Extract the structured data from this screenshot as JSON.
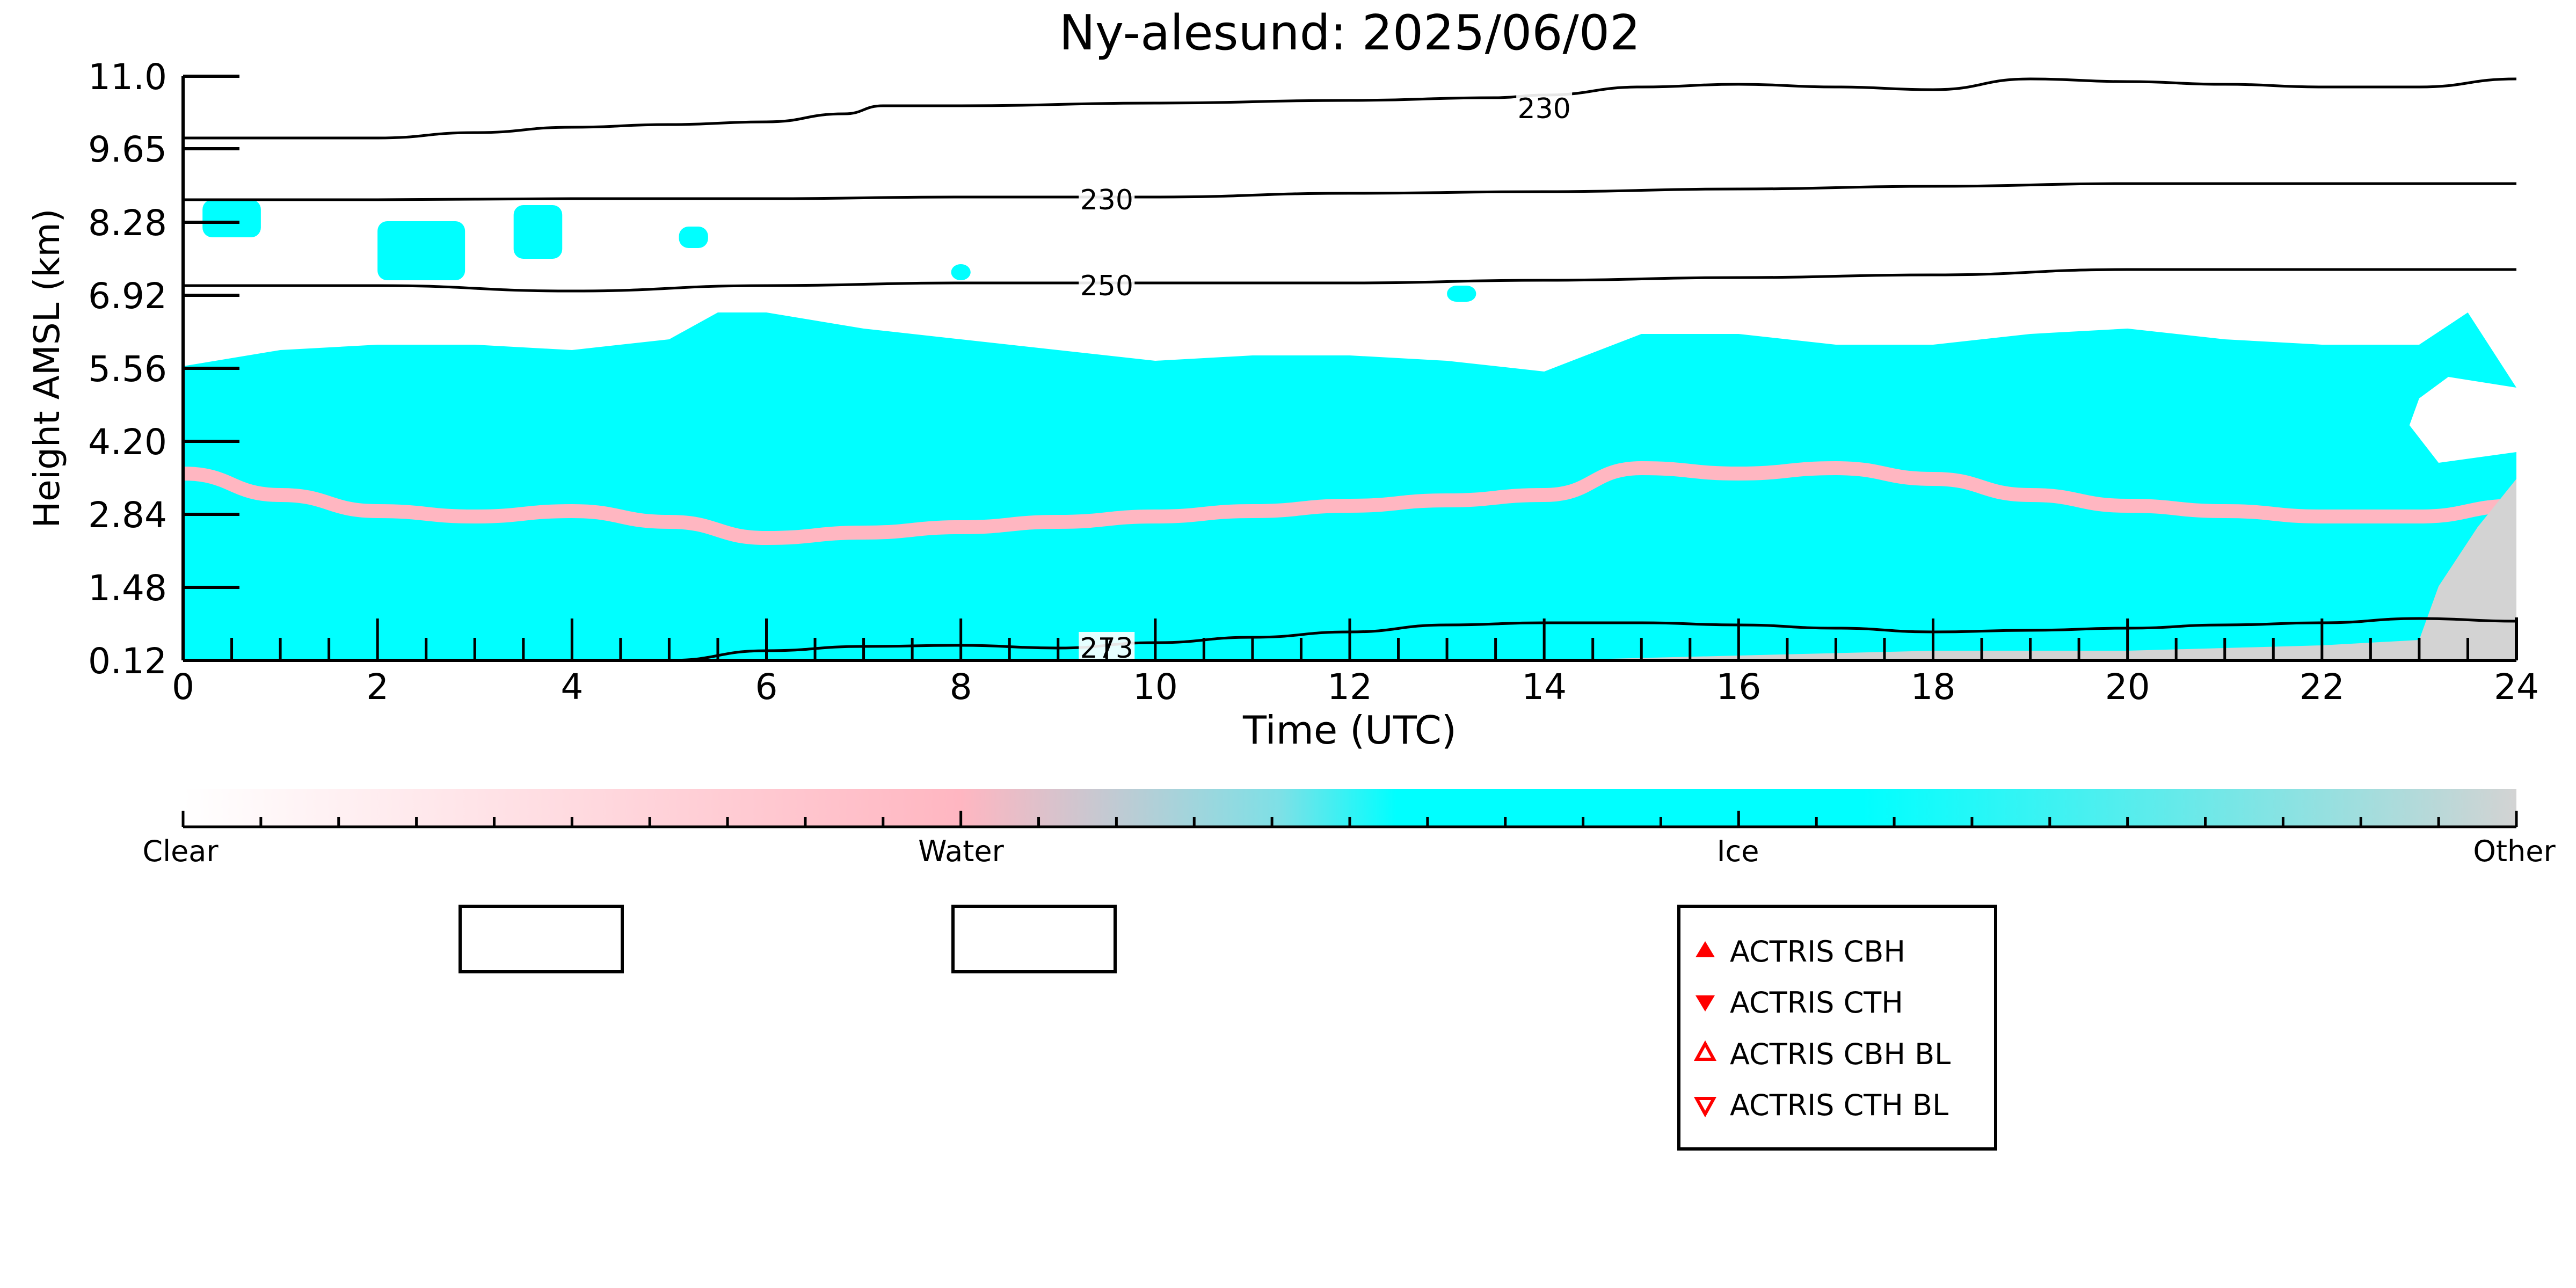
{
  "chart_data": {
    "type": "heatmap",
    "title": "Ny-alesund: 2025/06/02",
    "xlabel": "Time (UTC)",
    "ylabel": "Height AMSL (km)",
    "xlim": [
      0,
      24
    ],
    "ylim": [
      0.12,
      11.0
    ],
    "x_ticks": [
      "0",
      "2",
      "4",
      "6",
      "8",
      "10",
      "12",
      "14",
      "16",
      "18",
      "20",
      "22",
      "24"
    ],
    "y_ticks": [
      "0.12",
      "1.48",
      "2.84",
      "4.20",
      "5.56",
      "6.92",
      "8.28",
      "9.65",
      "11.0"
    ],
    "y_tick_values": [
      0.12,
      1.48,
      2.84,
      4.2,
      5.56,
      6.92,
      8.28,
      9.65,
      11.0
    ],
    "colorbar": {
      "labels": [
        "Clear",
        "Water",
        "Ice",
        "Other"
      ],
      "colors": {
        "clear": "#ffffff",
        "water": "#ffb6c1",
        "ice": "#00ffff",
        "other": "#d3d3d3"
      }
    },
    "regions": [
      {
        "class": "ice",
        "name": "main ice cloud",
        "top": [
          [
            0,
            5.6
          ],
          [
            1,
            5.9
          ],
          [
            2,
            6.0
          ],
          [
            3,
            6.0
          ],
          [
            4,
            5.9
          ],
          [
            5,
            6.1
          ],
          [
            5.5,
            6.6
          ],
          [
            6,
            6.6
          ],
          [
            7,
            6.3
          ],
          [
            8,
            6.1
          ],
          [
            9,
            5.9
          ],
          [
            10,
            5.7
          ],
          [
            11,
            5.8
          ],
          [
            12,
            5.8
          ],
          [
            13,
            5.7
          ],
          [
            14,
            5.5
          ],
          [
            15,
            6.2
          ],
          [
            16,
            6.2
          ],
          [
            17,
            6.0
          ],
          [
            18,
            6.0
          ],
          [
            19,
            6.2
          ],
          [
            20,
            6.3
          ],
          [
            21,
            6.1
          ],
          [
            22,
            6.0
          ],
          [
            23,
            6.0
          ],
          [
            23.5,
            6.6
          ],
          [
            24,
            5.2
          ]
        ],
        "bottom": [
          [
            0,
            0.12
          ],
          [
            24,
            0.12
          ]
        ]
      },
      {
        "class": "water",
        "name": "liquid layer",
        "points": [
          [
            0,
            3.6
          ],
          [
            1,
            3.2
          ],
          [
            2,
            2.9
          ],
          [
            3,
            2.8
          ],
          [
            4,
            2.9
          ],
          [
            5,
            2.7
          ],
          [
            6,
            2.4
          ],
          [
            7,
            2.5
          ],
          [
            8,
            2.6
          ],
          [
            9,
            2.7
          ],
          [
            10,
            2.8
          ],
          [
            11,
            2.9
          ],
          [
            12,
            3.0
          ],
          [
            13,
            3.1
          ],
          [
            14,
            3.2
          ],
          [
            15,
            3.7
          ],
          [
            16,
            3.6
          ],
          [
            17,
            3.7
          ],
          [
            18,
            3.5
          ],
          [
            19,
            3.2
          ],
          [
            20,
            3.0
          ],
          [
            21,
            2.9
          ],
          [
            22,
            2.8
          ],
          [
            23,
            2.8
          ],
          [
            24,
            3.0
          ]
        ]
      },
      {
        "class": "ice",
        "name": "upper ice patches",
        "spans": [
          [
            0.2,
            0.8,
            8.0,
            8.7
          ],
          [
            2.0,
            2.9,
            7.2,
            8.3
          ],
          [
            3.4,
            3.9,
            7.6,
            8.6
          ],
          [
            5.1,
            5.4,
            7.8,
            8.2
          ],
          [
            7.9,
            8.1,
            7.2,
            7.5
          ],
          [
            13.0,
            13.3,
            6.8,
            7.1
          ]
        ]
      },
      {
        "class": "other",
        "name": "surface/other region",
        "top": [
          [
            9.5,
            0.12
          ],
          [
            14,
            0.12
          ],
          [
            18,
            0.3
          ],
          [
            20,
            0.3
          ],
          [
            22,
            0.4
          ],
          [
            23,
            0.5
          ],
          [
            23.2,
            1.5
          ],
          [
            23.6,
            2.6
          ],
          [
            24,
            3.5
          ]
        ]
      },
      {
        "class": "clear",
        "name": "clear gap",
        "points": [
          [
            23.0,
            5.0
          ],
          [
            23.3,
            5.4
          ],
          [
            24,
            5.2
          ],
          [
            24,
            4.0
          ],
          [
            23.2,
            3.8
          ],
          [
            22.9,
            4.5
          ]
        ]
      }
    ],
    "contours": [
      {
        "label": "230",
        "label_at": [
          14,
          10.4
        ],
        "points": [
          [
            0,
            9.85
          ],
          [
            2,
            9.85
          ],
          [
            3,
            9.95
          ],
          [
            4,
            10.05
          ],
          [
            5,
            10.1
          ],
          [
            6,
            10.15
          ],
          [
            6.8,
            10.3
          ],
          [
            7.2,
            10.45
          ],
          [
            8,
            10.45
          ],
          [
            10,
            10.5
          ],
          [
            12,
            10.55
          ],
          [
            13.5,
            10.6
          ],
          [
            14,
            10.65
          ],
          [
            15,
            10.8
          ],
          [
            16,
            10.85
          ],
          [
            17,
            10.8
          ],
          [
            18,
            10.75
          ],
          [
            19,
            10.95
          ],
          [
            20,
            10.9
          ],
          [
            21,
            10.85
          ],
          [
            22,
            10.8
          ],
          [
            23,
            10.8
          ],
          [
            24,
            10.95
          ]
        ]
      },
      {
        "label": "230",
        "label_at": [
          9.5,
          8.7
        ],
        "points": [
          [
            0,
            8.7
          ],
          [
            2,
            8.7
          ],
          [
            4,
            8.72
          ],
          [
            6,
            8.72
          ],
          [
            8,
            8.75
          ],
          [
            10,
            8.75
          ],
          [
            12,
            8.82
          ],
          [
            14,
            8.85
          ],
          [
            16,
            8.9
          ],
          [
            18,
            8.95
          ],
          [
            20,
            9.0
          ],
          [
            22,
            9.0
          ],
          [
            24,
            9.0
          ]
        ]
      },
      {
        "label": "250",
        "label_at": [
          9.5,
          7.1
        ],
        "points": [
          [
            0,
            7.1
          ],
          [
            2,
            7.1
          ],
          [
            4,
            7.0
          ],
          [
            6,
            7.1
          ],
          [
            8,
            7.15
          ],
          [
            10,
            7.15
          ],
          [
            12,
            7.15
          ],
          [
            14,
            7.2
          ],
          [
            16,
            7.25
          ],
          [
            18,
            7.3
          ],
          [
            20,
            7.4
          ],
          [
            22,
            7.4
          ],
          [
            24,
            7.4
          ]
        ]
      },
      {
        "label": "273",
        "label_at": [
          9.5,
          0.35
        ],
        "points": [
          [
            5,
            0.12
          ],
          [
            6,
            0.3
          ],
          [
            7,
            0.38
          ],
          [
            8,
            0.4
          ],
          [
            9,
            0.35
          ],
          [
            10,
            0.45
          ],
          [
            11,
            0.55
          ],
          [
            12,
            0.65
          ],
          [
            13,
            0.78
          ],
          [
            14,
            0.82
          ],
          [
            15,
            0.82
          ],
          [
            16,
            0.78
          ],
          [
            17,
            0.72
          ],
          [
            18,
            0.65
          ],
          [
            19,
            0.68
          ],
          [
            20,
            0.72
          ],
          [
            21,
            0.78
          ],
          [
            22,
            0.82
          ],
          [
            23,
            0.9
          ],
          [
            24,
            0.85
          ]
        ]
      }
    ],
    "legend": {
      "placement": "bottom-center",
      "entries": [
        {
          "label": "ACTRIS CBH",
          "marker": "triangle-up-filled",
          "color": "#ff0000"
        },
        {
          "label": "ACTRIS CTH",
          "marker": "triangle-down-filled",
          "color": "#ff0000"
        },
        {
          "label": "ACTRIS CBH BL",
          "marker": "triangle-up-open",
          "color": "#ff0000"
        },
        {
          "label": "ACTRIS CTH BL",
          "marker": "triangle-down-open",
          "color": "#ff0000"
        }
      ]
    }
  }
}
